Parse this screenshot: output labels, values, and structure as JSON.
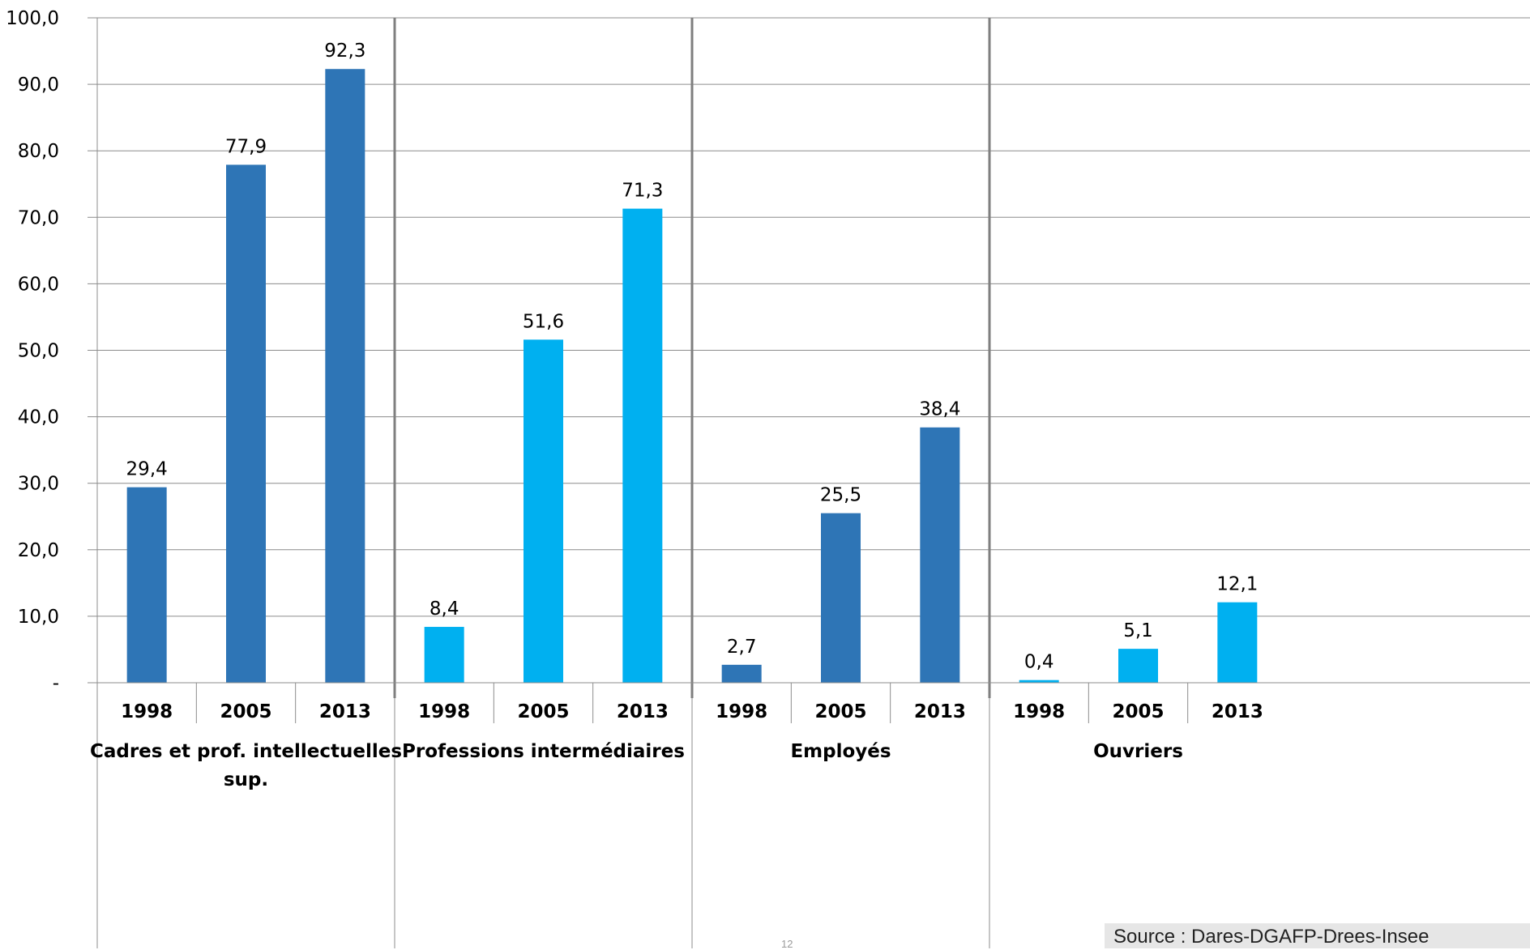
{
  "chart_data": {
    "type": "bar",
    "groups": [
      {
        "name": "Cadres et prof. intellectuelles sup.",
        "name_lines": [
          "Cadres et prof. intellectuelles",
          "sup."
        ],
        "years": [
          "1998",
          "2005",
          "2013"
        ],
        "values": [
          29.4,
          77.9,
          92.3
        ],
        "value_labels": [
          "29,4",
          "77,9",
          "92,3"
        ],
        "color": "#2e75b6"
      },
      {
        "name": "Professions intermédiaires",
        "name_lines": [
          "Professions intermédiaires"
        ],
        "years": [
          "1998",
          "2005",
          "2013"
        ],
        "values": [
          8.4,
          51.6,
          71.3
        ],
        "value_labels": [
          "8,4",
          "51,6",
          "71,3"
        ],
        "color": "#00b0f0"
      },
      {
        "name": "Employés",
        "name_lines": [
          "Employés"
        ],
        "years": [
          "1998",
          "2005",
          "2013"
        ],
        "values": [
          2.7,
          25.5,
          38.4
        ],
        "value_labels": [
          "2,7",
          "25,5",
          "38,4"
        ],
        "color": "#2e75b6"
      },
      {
        "name": "Ouvriers",
        "name_lines": [
          "Ouvriers"
        ],
        "years": [
          "1998",
          "2005",
          "2013"
        ],
        "values": [
          0.4,
          5.1,
          12.1
        ],
        "value_labels": [
          "0,4",
          "5,1",
          "12,1"
        ],
        "color": "#00b0f0"
      }
    ],
    "ylim": [
      0,
      100
    ],
    "yticks": [
      0,
      10,
      20,
      30,
      40,
      50,
      60,
      70,
      80,
      90,
      100
    ],
    "ytick_labels": [
      "-",
      "10,0",
      "20,0",
      "30,0",
      "40,0",
      "50,0",
      "60,0",
      "70,0",
      "80,0",
      "90,0",
      "100,0"
    ],
    "grid": true,
    "title": "",
    "xlabel": "",
    "ylabel": ""
  },
  "source": "Source : Dares-DGAFP-Drees-Insee",
  "page_number": "12"
}
